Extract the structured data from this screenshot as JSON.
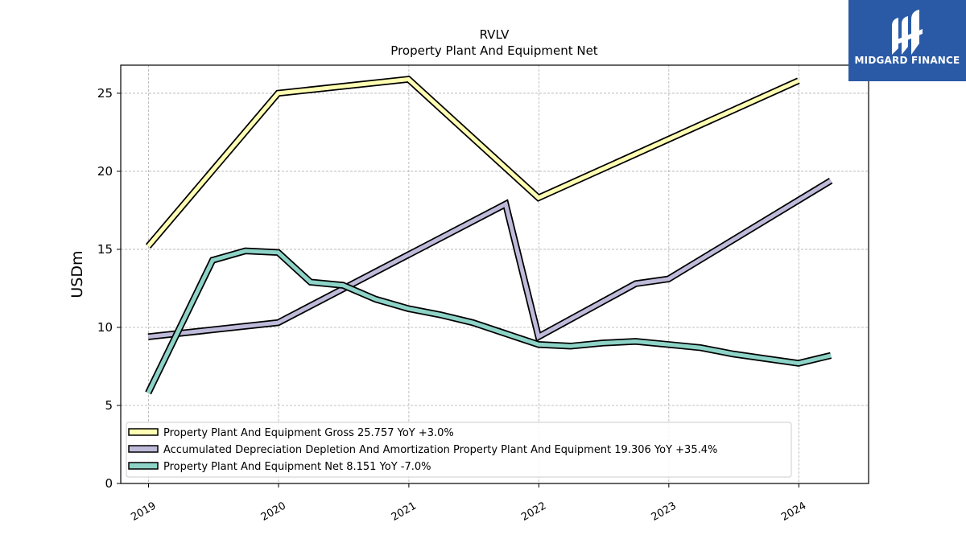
{
  "chart_data": {
    "type": "line",
    "title": "RVLV",
    "subtitle": "Property Plant And Equipment Net",
    "xlabel": "",
    "ylabel": "USDm",
    "ylim": [
      0,
      26.8
    ],
    "xlim": [
      "2018-10-15",
      "2024-07-15"
    ],
    "grid": true,
    "legend_position": "lower-left",
    "x_tick_labels": [
      "2019",
      "2020",
      "2021",
      "2022",
      "2023",
      "2024"
    ],
    "x_ticks": [
      "2019-01-01",
      "2020-01-01",
      "2021-01-01",
      "2022-01-01",
      "2023-01-01",
      "2024-01-01"
    ],
    "y_ticks": [
      0,
      5,
      10,
      15,
      20,
      25
    ],
    "y_tick_labels": [
      "0",
      "5",
      "10",
      "15",
      "20",
      "25"
    ],
    "series": [
      {
        "name": "Property Plant And Equipment Gross",
        "legend_label": "Property Plant And Equipment Gross  25.757 YoY +3.0%",
        "color": "#ffffb3",
        "points": [
          {
            "x": "2018-12-31",
            "y": 15.2
          },
          {
            "x": "2019-12-31",
            "y": 25.0
          },
          {
            "x": "2020-12-31",
            "y": 25.9
          },
          {
            "x": "2021-12-31",
            "y": 18.3
          },
          {
            "x": "2023-12-31",
            "y": 25.8
          }
        ]
      },
      {
        "name": "Accumulated Depreciation Depletion And Amortization Property Plant And Equipment",
        "legend_label": "Accumulated Depreciation Depletion And Amortization Property Plant And Equipment  19.306 YoY +35.4%",
        "color": "#bebada",
        "points": [
          {
            "x": "2018-12-31",
            "y": 9.4
          },
          {
            "x": "2019-12-31",
            "y": 10.3
          },
          {
            "x": "2021-09-30",
            "y": 17.9
          },
          {
            "x": "2021-12-31",
            "y": 9.4
          },
          {
            "x": "2022-09-30",
            "y": 12.8
          },
          {
            "x": "2022-12-31",
            "y": 13.1
          },
          {
            "x": "2024-03-31",
            "y": 19.4
          }
        ]
      },
      {
        "name": "Property Plant And Equipment Net",
        "legend_label": "Property Plant And Equipment Net  8.151 YoY -7.0%",
        "color": "#8dd3c7",
        "points": [
          {
            "x": "2018-12-31",
            "y": 5.8
          },
          {
            "x": "2019-06-30",
            "y": 14.3
          },
          {
            "x": "2019-09-30",
            "y": 14.9
          },
          {
            "x": "2019-12-31",
            "y": 14.8
          },
          {
            "x": "2020-03-31",
            "y": 12.9
          },
          {
            "x": "2020-06-30",
            "y": 12.7
          },
          {
            "x": "2020-09-30",
            "y": 11.8
          },
          {
            "x": "2020-12-31",
            "y": 11.2
          },
          {
            "x": "2021-03-31",
            "y": 10.8
          },
          {
            "x": "2021-06-30",
            "y": 10.3
          },
          {
            "x": "2021-09-30",
            "y": 9.6
          },
          {
            "x": "2021-12-31",
            "y": 8.9
          },
          {
            "x": "2022-03-31",
            "y": 8.8
          },
          {
            "x": "2022-06-30",
            "y": 9.0
          },
          {
            "x": "2022-09-30",
            "y": 9.1
          },
          {
            "x": "2022-12-31",
            "y": 8.9
          },
          {
            "x": "2023-03-31",
            "y": 8.7
          },
          {
            "x": "2023-06-30",
            "y": 8.3
          },
          {
            "x": "2023-09-30",
            "y": 8.0
          },
          {
            "x": "2023-12-31",
            "y": 7.7
          },
          {
            "x": "2024-03-31",
            "y": 8.2
          }
        ]
      }
    ]
  },
  "logo": {
    "brand": "MIDGARD FINANCE",
    "icon": "midgard-logo-icon",
    "color": "#2a5aa6"
  }
}
